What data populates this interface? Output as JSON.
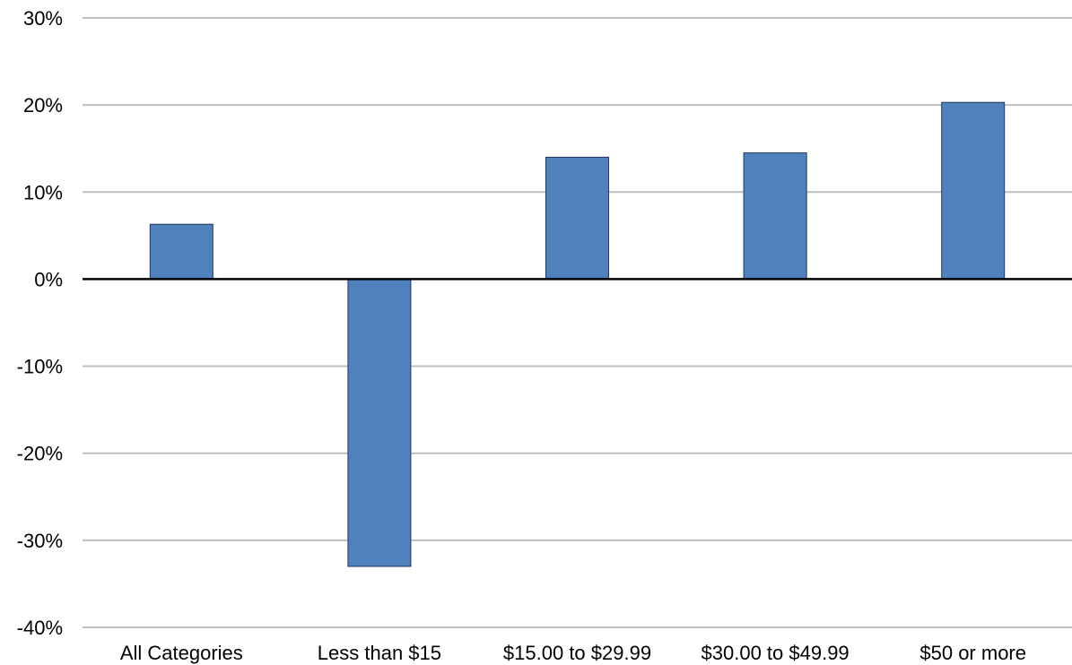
{
  "chart_data": {
    "type": "bar",
    "categories": [
      "All Categories",
      "Less than $15",
      "$15.00 to $29.99",
      "$30.00 to $49.99",
      "$50 or more"
    ],
    "values": [
      6.3,
      -33.0,
      14.0,
      14.5,
      20.3
    ],
    "value_unit": "%",
    "title": "",
    "xlabel": "",
    "ylabel": "",
    "ylim": [
      -40,
      30
    ],
    "yticks": [
      30,
      20,
      10,
      0,
      -10,
      -20,
      -30,
      -40
    ],
    "ytick_labels": [
      "30%",
      "20%",
      "10%",
      "0%",
      "-10%",
      "-20%",
      "-30%",
      "-40%"
    ],
    "grid": true,
    "legend": "none",
    "colors": {
      "bar": "#4f81bd",
      "bar_border": "#1f3a5f",
      "grid": "#bfbfbf",
      "zero_line": "#000000"
    }
  }
}
